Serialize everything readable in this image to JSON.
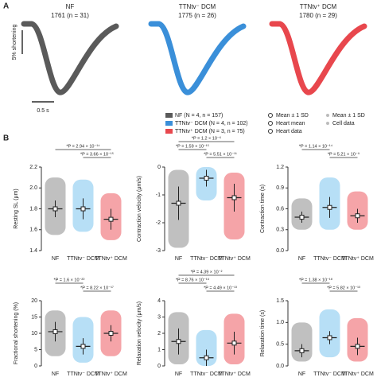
{
  "panel_a": {
    "label": "A",
    "traces": [
      {
        "name": "NF",
        "subtitle": "1761 (n = 31)",
        "color": "#5a5a5a"
      },
      {
        "name": "TTNtv⁻ DCM",
        "subtitle": "1775 (n = 26)",
        "color": "#3a8fd9"
      },
      {
        "name": "TTNtv⁺ DCM",
        "subtitle": "1780 (n = 29)",
        "color": "#e8474d"
      }
    ],
    "scale_y": "5% shortening",
    "scale_x": "0.5 s"
  },
  "legend": {
    "groups": [
      "NF (N = 4, n = 157)",
      "TTNtv⁻ DCM (N = 4, n = 102)",
      "TTNtv⁺ DCM (N = 3, n = 75)"
    ],
    "heart": [
      "Mean ± 1 SD",
      "Heart mean",
      "Heart data"
    ],
    "cell": [
      "Mean ± 1 SD",
      "Cell data"
    ]
  },
  "panel_b_label": "B",
  "chart_data": [
    {
      "type": "dot",
      "ylabel": "Resting SL (μm)",
      "categories": [
        "NF",
        "TTNtv⁻ DCM",
        "TTNtv⁺ DCM"
      ],
      "colors": [
        "#8c8c8c",
        "#7cc4ee",
        "#ec5a60"
      ],
      "values": [
        1.8,
        1.8,
        1.7
      ],
      "errors": [
        0.08,
        0.1,
        0.1
      ],
      "ranges": [
        [
          1.55,
          2.1
        ],
        [
          1.58,
          2.08
        ],
        [
          1.5,
          1.95
        ]
      ],
      "ylim": [
        1.4,
        2.2
      ],
      "yticks": [
        1.4,
        1.6,
        1.8,
        {
          "value": 2,
          "label": "2.0"
        },
        2.2
      ],
      "annotations": [
        "*P = 2.94 × 10⁻¹⁴",
        "*P = 3.66 × 10⁻¹⁵"
      ]
    },
    {
      "type": "dot",
      "ylabel": "Contraction velocity (μm/s)",
      "categories": [
        "NF",
        "TTNtv⁻ DCM",
        "TTNtv⁺ DCM"
      ],
      "colors": [
        "#8c8c8c",
        "#7cc4ee",
        "#ec5a60"
      ],
      "values": [
        -1.3,
        -0.4,
        -1.1
      ],
      "errors": [
        0.6,
        0.3,
        0.5
      ],
      "ranges": [
        [
          -2.9,
          -0.1
        ],
        [
          -1.2,
          0
        ],
        [
          -2.6,
          -0.2
        ]
      ],
      "ylim": [
        -3,
        0
      ],
      "yticks": [
        -3,
        -2,
        -1,
        0
      ],
      "annotations": [
        "*P = 1.2 × 10⁻⁶",
        "*P = 1.59 × 10⁻¹⁵",
        "*P = 5.51 × 10⁻¹¹"
      ]
    },
    {
      "type": "dot",
      "ylabel": "Contraction time (s)",
      "categories": [
        "NF",
        "TTNtv⁻ DCM",
        "TTNtv⁺ DCM"
      ],
      "colors": [
        "#8c8c8c",
        "#7cc4ee",
        "#ec5a60"
      ],
      "values": [
        0.48,
        0.62,
        0.5
      ],
      "errors": [
        0.08,
        0.15,
        0.1
      ],
      "ranges": [
        [
          0.3,
          0.75
        ],
        [
          0.3,
          1.05
        ],
        [
          0.3,
          0.85
        ]
      ],
      "ylim": [
        0,
        1.2
      ],
      "yticks": [
        {
          "value": 0,
          "label": "0.0"
        },
        0.3,
        0.6,
        0.9,
        1.2
      ],
      "annotations": [
        "*P = 1.14 × 10⁻¹⁴",
        "*P = 5.21 × 10⁻⁹"
      ]
    },
    {
      "type": "dot",
      "ylabel": "Fractional shortening (%)",
      "categories": [
        "NF",
        "TTNtv⁻ DCM",
        "TTNtv⁺ DCM"
      ],
      "colors": [
        "#8c8c8c",
        "#7cc4ee",
        "#ec5a60"
      ],
      "values": [
        10.5,
        6,
        10
      ],
      "errors": [
        3,
        2.5,
        2.5
      ],
      "ranges": [
        [
          3,
          17
        ],
        [
          1,
          15
        ],
        [
          3,
          17
        ]
      ],
      "ylim": [
        0,
        20
      ],
      "yticks": [
        0,
        5,
        10,
        15,
        20
      ],
      "annotations": [
        "*P = 1.6 × 10⁻²⁰",
        "*P = 8.22 × 10⁻¹⁷"
      ]
    },
    {
      "type": "dot",
      "ylabel": "Relaxation velocity (μm/s)",
      "categories": [
        "NF",
        "TTNtv⁻ DCM",
        "TTNtv⁺ DCM"
      ],
      "colors": [
        "#8c8c8c",
        "#7cc4ee",
        "#ec5a60"
      ],
      "values": [
        1.5,
        0.5,
        1.4
      ],
      "errors": [
        0.8,
        0.5,
        0.7
      ],
      "ranges": [
        [
          0.1,
          3.3
        ],
        [
          0,
          2.2
        ],
        [
          0.1,
          3.2
        ]
      ],
      "ylim": [
        0,
        4
      ],
      "yticks": [
        0,
        1,
        2,
        3,
        4
      ],
      "annotations": [
        "*P = 4.39 × 10⁻²",
        "*P = 8.76 × 10⁻¹⁹",
        "*P = 4.49 × 10⁻¹³"
      ]
    },
    {
      "type": "dot",
      "ylabel": "Relaxation time (s)",
      "categories": [
        "NF",
        "TTNtv⁻ DCM",
        "TTNtv⁺ DCM"
      ],
      "colors": [
        "#8c8c8c",
        "#7cc4ee",
        "#ec5a60"
      ],
      "values": [
        0.35,
        0.65,
        0.45
      ],
      "errors": [
        0.15,
        0.15,
        0.2
      ],
      "ranges": [
        [
          0.1,
          1
        ],
        [
          0.2,
          1.3
        ],
        [
          0.1,
          1.1
        ]
      ],
      "ylim": [
        0,
        1.5
      ],
      "yticks": [
        {
          "value": 0,
          "label": "0.0"
        },
        0.5,
        {
          "value": 1,
          "label": "1.0"
        },
        1.5
      ],
      "annotations": [
        "*P = 1.38 × 10⁻¹⁸",
        "*P = 5.82 × 10⁻¹³"
      ]
    }
  ]
}
